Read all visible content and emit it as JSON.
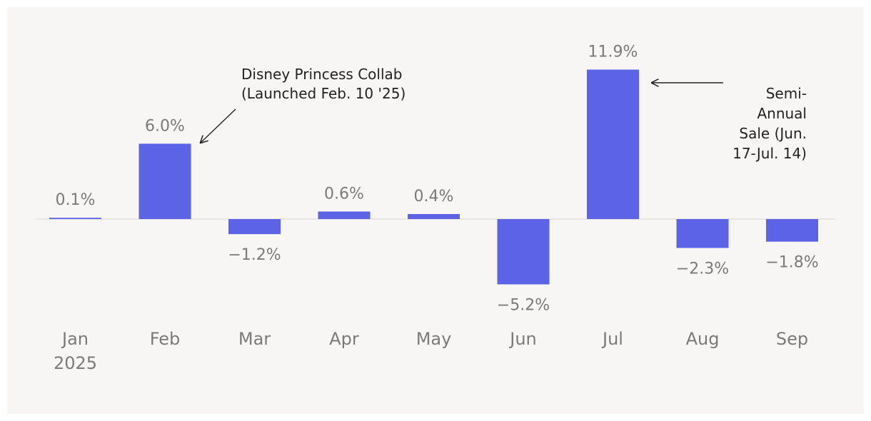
{
  "chart_data": {
    "type": "bar",
    "title": "",
    "xlabel": "",
    "ylabel": "",
    "categories": [
      "Jan",
      "Feb",
      "Mar",
      "Apr",
      "May",
      "Jun",
      "Jul",
      "Aug",
      "Sep"
    ],
    "category_sublabels": [
      "2025",
      "",
      "",
      "",
      "",
      "",
      "",
      "",
      ""
    ],
    "values": [
      0.1,
      6.0,
      -1.2,
      0.6,
      0.4,
      -5.2,
      11.9,
      -2.3,
      -1.8
    ],
    "value_labels": [
      "0.1%",
      "6.0%",
      "−1.2%",
      "0.6%",
      "0.4%",
      "−5.2%",
      "11.9%",
      "−2.3%",
      "−1.8%"
    ],
    "ylim": [
      -5.2,
      11.9
    ],
    "grid": false,
    "colors": {
      "bar": "#5d63e6",
      "zero_line": "#e2e2e2",
      "label": "#7a7a7a",
      "annotation": "#222222",
      "background": "#f8f6f5"
    },
    "annotations": [
      {
        "target": "Feb",
        "lines": [
          "Disney Princess Collab",
          "(Launched Feb. 10 '25)"
        ]
      },
      {
        "target": "Jul",
        "lines": [
          "Semi-",
          "Annual",
          "Sale (Jun.",
          "17-Jul. 14)"
        ]
      }
    ]
  }
}
